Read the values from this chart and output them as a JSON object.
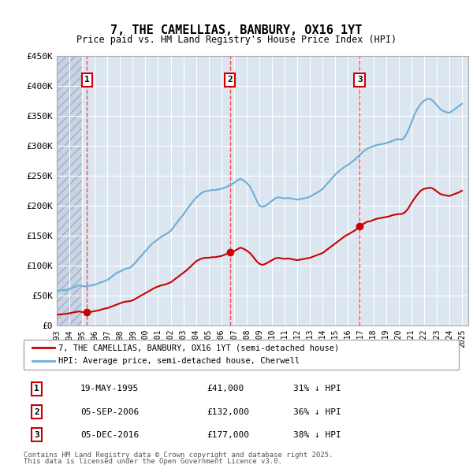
{
  "title": "7, THE CAMELLIAS, BANBURY, OX16 1YT",
  "subtitle": "Price paid vs. HM Land Registry's House Price Index (HPI)",
  "ylabel": "",
  "ylim": [
    0,
    450000
  ],
  "yticks": [
    0,
    50000,
    100000,
    150000,
    200000,
    250000,
    300000,
    350000,
    400000,
    450000
  ],
  "ytick_labels": [
    "£0",
    "£50K",
    "£100K",
    "£150K",
    "£200K",
    "£250K",
    "£300K",
    "£350K",
    "£400K",
    "£450K"
  ],
  "background_color": "#ffffff",
  "plot_bg_color": "#dce6f1",
  "hatch_color": "#c0c8d8",
  "grid_color": "#ffffff",
  "red_line_color": "#cc0000",
  "blue_line_color": "#6baed6",
  "sale_marker_color": "#cc0000",
  "vline_color": "#ff4444",
  "legend_label_red": "7, THE CAMELLIAS, BANBURY, OX16 1YT (semi-detached house)",
  "legend_label_blue": "HPI: Average price, semi-detached house, Cherwell",
  "transactions": [
    {
      "num": 1,
      "date_str": "19-MAY-1995",
      "price": 41000,
      "pct": "31%",
      "year_x": 1995.38
    },
    {
      "num": 2,
      "date_str": "05-SEP-2006",
      "price": 132000,
      "pct": "36%",
      "year_x": 2006.68
    },
    {
      "num": 3,
      "date_str": "05-DEC-2016",
      "price": 177000,
      "pct": "38%",
      "year_x": 2016.92
    }
  ],
  "footer_line1": "Contains HM Land Registry data © Crown copyright and database right 2025.",
  "footer_line2": "This data is licensed under the Open Government Licence v3.0.",
  "hpi_data": {
    "years": [
      1993.0,
      1993.25,
      1993.5,
      1993.75,
      1994.0,
      1994.25,
      1994.5,
      1994.75,
      1995.0,
      1995.25,
      1995.5,
      1995.75,
      1996.0,
      1996.25,
      1996.5,
      1996.75,
      1997.0,
      1997.25,
      1997.5,
      1997.75,
      1998.0,
      1998.25,
      1998.5,
      1998.75,
      1999.0,
      1999.25,
      1999.5,
      1999.75,
      2000.0,
      2000.25,
      2000.5,
      2000.75,
      2001.0,
      2001.25,
      2001.5,
      2001.75,
      2002.0,
      2002.25,
      2002.5,
      2002.75,
      2003.0,
      2003.25,
      2003.5,
      2003.75,
      2004.0,
      2004.25,
      2004.5,
      2004.75,
      2005.0,
      2005.25,
      2005.5,
      2005.75,
      2006.0,
      2006.25,
      2006.5,
      2006.75,
      2007.0,
      2007.25,
      2007.5,
      2007.75,
      2008.0,
      2008.25,
      2008.5,
      2008.75,
      2009.0,
      2009.25,
      2009.5,
      2009.75,
      2010.0,
      2010.25,
      2010.5,
      2010.75,
      2011.0,
      2011.25,
      2011.5,
      2011.75,
      2012.0,
      2012.25,
      2012.5,
      2012.75,
      2013.0,
      2013.25,
      2013.5,
      2013.75,
      2014.0,
      2014.25,
      2014.5,
      2014.75,
      2015.0,
      2015.25,
      2015.5,
      2015.75,
      2016.0,
      2016.25,
      2016.5,
      2016.75,
      2017.0,
      2017.25,
      2017.5,
      2017.75,
      2018.0,
      2018.25,
      2018.5,
      2018.75,
      2019.0,
      2019.25,
      2019.5,
      2019.75,
      2020.0,
      2020.25,
      2020.5,
      2020.75,
      2021.0,
      2021.25,
      2021.5,
      2021.75,
      2022.0,
      2022.25,
      2022.5,
      2022.75,
      2023.0,
      2023.25,
      2023.5,
      2023.75,
      2024.0,
      2024.25,
      2024.5,
      2024.75,
      2025.0
    ],
    "values": [
      58000,
      58500,
      59000,
      59500,
      61000,
      63000,
      65000,
      67000,
      66000,
      65000,
      66000,
      67000,
      68000,
      70000,
      72000,
      74000,
      76000,
      80000,
      84000,
      88000,
      90000,
      93000,
      95000,
      96000,
      100000,
      106000,
      112000,
      118000,
      124000,
      130000,
      136000,
      140000,
      144000,
      148000,
      151000,
      154000,
      158000,
      165000,
      172000,
      179000,
      185000,
      193000,
      200000,
      207000,
      213000,
      218000,
      222000,
      224000,
      225000,
      226000,
      226000,
      227000,
      228000,
      230000,
      232000,
      235000,
      238000,
      242000,
      245000,
      242000,
      238000,
      232000,
      222000,
      210000,
      200000,
      198000,
      200000,
      204000,
      208000,
      212000,
      214000,
      213000,
      212000,
      213000,
      212000,
      211000,
      210000,
      211000,
      212000,
      213000,
      215000,
      218000,
      221000,
      224000,
      228000,
      234000,
      240000,
      246000,
      252000,
      257000,
      261000,
      265000,
      268000,
      272000,
      276000,
      281000,
      286000,
      291000,
      295000,
      297000,
      299000,
      301000,
      302000,
      303000,
      304000,
      306000,
      308000,
      310000,
      311000,
      310000,
      315000,
      325000,
      338000,
      352000,
      362000,
      370000,
      375000,
      378000,
      378000,
      374000,
      368000,
      362000,
      358000,
      356000,
      355000,
      358000,
      362000,
      366000,
      370000
    ]
  },
  "red_data": {
    "years": [
      1993.0,
      1993.25,
      1993.5,
      1993.75,
      1994.0,
      1994.25,
      1994.5,
      1994.75,
      1995.0,
      1995.25,
      1995.5,
      1995.75,
      1996.0,
      1996.25,
      1996.5,
      1996.75,
      1997.0,
      1997.25,
      1997.5,
      1997.75,
      1998.0,
      1998.25,
      1998.5,
      1998.75,
      1999.0,
      1999.25,
      1999.5,
      1999.75,
      2000.0,
      2000.25,
      2000.5,
      2000.75,
      2001.0,
      2001.25,
      2001.5,
      2001.75,
      2002.0,
      2002.25,
      2002.5,
      2002.75,
      2003.0,
      2003.25,
      2003.5,
      2003.75,
      2004.0,
      2004.25,
      2004.5,
      2004.75,
      2005.0,
      2005.25,
      2005.5,
      2005.75,
      2006.0,
      2006.25,
      2006.5,
      2006.75,
      2007.0,
      2007.25,
      2007.5,
      2007.75,
      2008.0,
      2008.25,
      2008.5,
      2008.75,
      2009.0,
      2009.25,
      2009.5,
      2009.75,
      2010.0,
      2010.25,
      2010.5,
      2010.75,
      2011.0,
      2011.25,
      2011.5,
      2011.75,
      2012.0,
      2012.25,
      2012.5,
      2012.75,
      2013.0,
      2013.25,
      2013.5,
      2013.75,
      2014.0,
      2014.25,
      2014.5,
      2014.75,
      2015.0,
      2015.25,
      2015.5,
      2015.75,
      2016.0,
      2016.25,
      2016.5,
      2016.75,
      2017.0,
      2017.25,
      2017.5,
      2017.75,
      2018.0,
      2018.25,
      2018.5,
      2018.75,
      2019.0,
      2019.25,
      2019.5,
      2019.75,
      2020.0,
      2020.25,
      2020.5,
      2020.75,
      2021.0,
      2021.25,
      2021.5,
      2021.75,
      2022.0,
      2022.25,
      2022.5,
      2022.75,
      2023.0,
      2023.25,
      2023.5,
      2023.75,
      2024.0,
      2024.25,
      2024.5,
      2024.75,
      2025.0
    ],
    "values": [
      18000,
      18500,
      19000,
      19500,
      20500,
      21500,
      22500,
      23500,
      22500,
      22000,
      22500,
      23000,
      24000,
      25000,
      26500,
      28000,
      29000,
      31000,
      33000,
      35000,
      37000,
      39000,
      40000,
      40500,
      42000,
      45000,
      48000,
      51000,
      54000,
      57000,
      60000,
      63000,
      65000,
      67000,
      68000,
      70000,
      72000,
      76000,
      80000,
      84000,
      88000,
      92000,
      97000,
      102000,
      107000,
      110000,
      112000,
      113000,
      113000,
      114000,
      114000,
      115000,
      116000,
      118000,
      120000,
      122000,
      124000,
      127000,
      130000,
      128000,
      125000,
      121000,
      115000,
      108000,
      103000,
      101000,
      103000,
      106000,
      109000,
      112000,
      113000,
      112000,
      111000,
      112000,
      111000,
      110000,
      109000,
      110000,
      111000,
      112000,
      113000,
      115000,
      117000,
      119000,
      121000,
      125000,
      129000,
      133000,
      137000,
      141000,
      145000,
      149000,
      152000,
      155000,
      158000,
      162000,
      166000,
      170000,
      173000,
      174000,
      176000,
      178000,
      179000,
      180000,
      181000,
      182000,
      184000,
      185000,
      186000,
      186000,
      189000,
      195000,
      204000,
      212000,
      219000,
      225000,
      228000,
      229000,
      230000,
      228000,
      224000,
      220000,
      218000,
      217000,
      216000,
      218000,
      220000,
      222000,
      225000
    ]
  },
  "xlim": [
    1993.0,
    2025.5
  ],
  "xticks": [
    1993,
    1994,
    1995,
    1996,
    1997,
    1998,
    1999,
    2000,
    2001,
    2002,
    2003,
    2004,
    2005,
    2006,
    2007,
    2008,
    2009,
    2010,
    2011,
    2012,
    2013,
    2014,
    2015,
    2016,
    2017,
    2018,
    2019,
    2020,
    2021,
    2022,
    2023,
    2024,
    2025
  ]
}
